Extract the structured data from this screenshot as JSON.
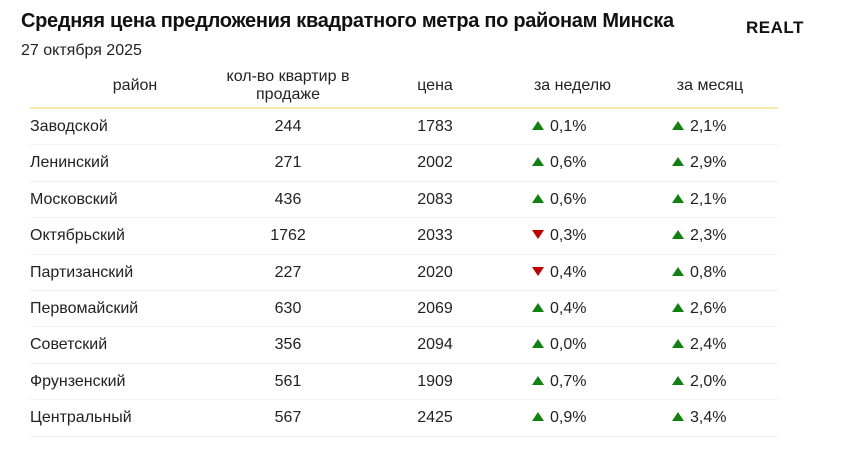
{
  "chart_data": {
    "type": "table",
    "title": "Средняя цена предложения квадратного метра по районам Минска",
    "subtitle": "27 октября 2025",
    "logo": "REALT",
    "columns": [
      "район",
      "кол-во квартир в продаже",
      "цена",
      "за неделю",
      "за месяц"
    ],
    "rows": [
      {
        "district": "Заводской",
        "count": "244",
        "price": "1783",
        "week": "0,1%",
        "week_dir": "up",
        "month": "2,1%",
        "month_dir": "up"
      },
      {
        "district": "Ленинский",
        "count": "271",
        "price": "2002",
        "week": "0,6%",
        "week_dir": "up",
        "month": "2,9%",
        "month_dir": "up"
      },
      {
        "district": "Московский",
        "count": "436",
        "price": "2083",
        "week": "0,6%",
        "week_dir": "up",
        "month": "2,1%",
        "month_dir": "up"
      },
      {
        "district": "Октябрьский",
        "count": "1762",
        "price": "2033",
        "week": "0,3%",
        "week_dir": "down",
        "month": "2,3%",
        "month_dir": "up"
      },
      {
        "district": "Партизанский",
        "count": "227",
        "price": "2020",
        "week": "0,4%",
        "week_dir": "down",
        "month": "0,8%",
        "month_dir": "up"
      },
      {
        "district": "Первомайский",
        "count": "630",
        "price": "2069",
        "week": "0,4%",
        "week_dir": "up",
        "month": "2,6%",
        "month_dir": "up"
      },
      {
        "district": "Советский",
        "count": "356",
        "price": "2094",
        "week": "0,0%",
        "week_dir": "up",
        "month": "2,4%",
        "month_dir": "up"
      },
      {
        "district": "Фрунзенский",
        "count": "561",
        "price": "1909",
        "week": "0,7%",
        "week_dir": "up",
        "month": "2,0%",
        "month_dir": "up"
      },
      {
        "district": "Центральный",
        "count": "567",
        "price": "2425",
        "week": "0,9%",
        "week_dir": "up",
        "month": "3,4%",
        "month_dir": "up"
      }
    ],
    "colors": {
      "up": "#128112",
      "down": "#c00000",
      "header_line": "#f5e9a8"
    }
  }
}
